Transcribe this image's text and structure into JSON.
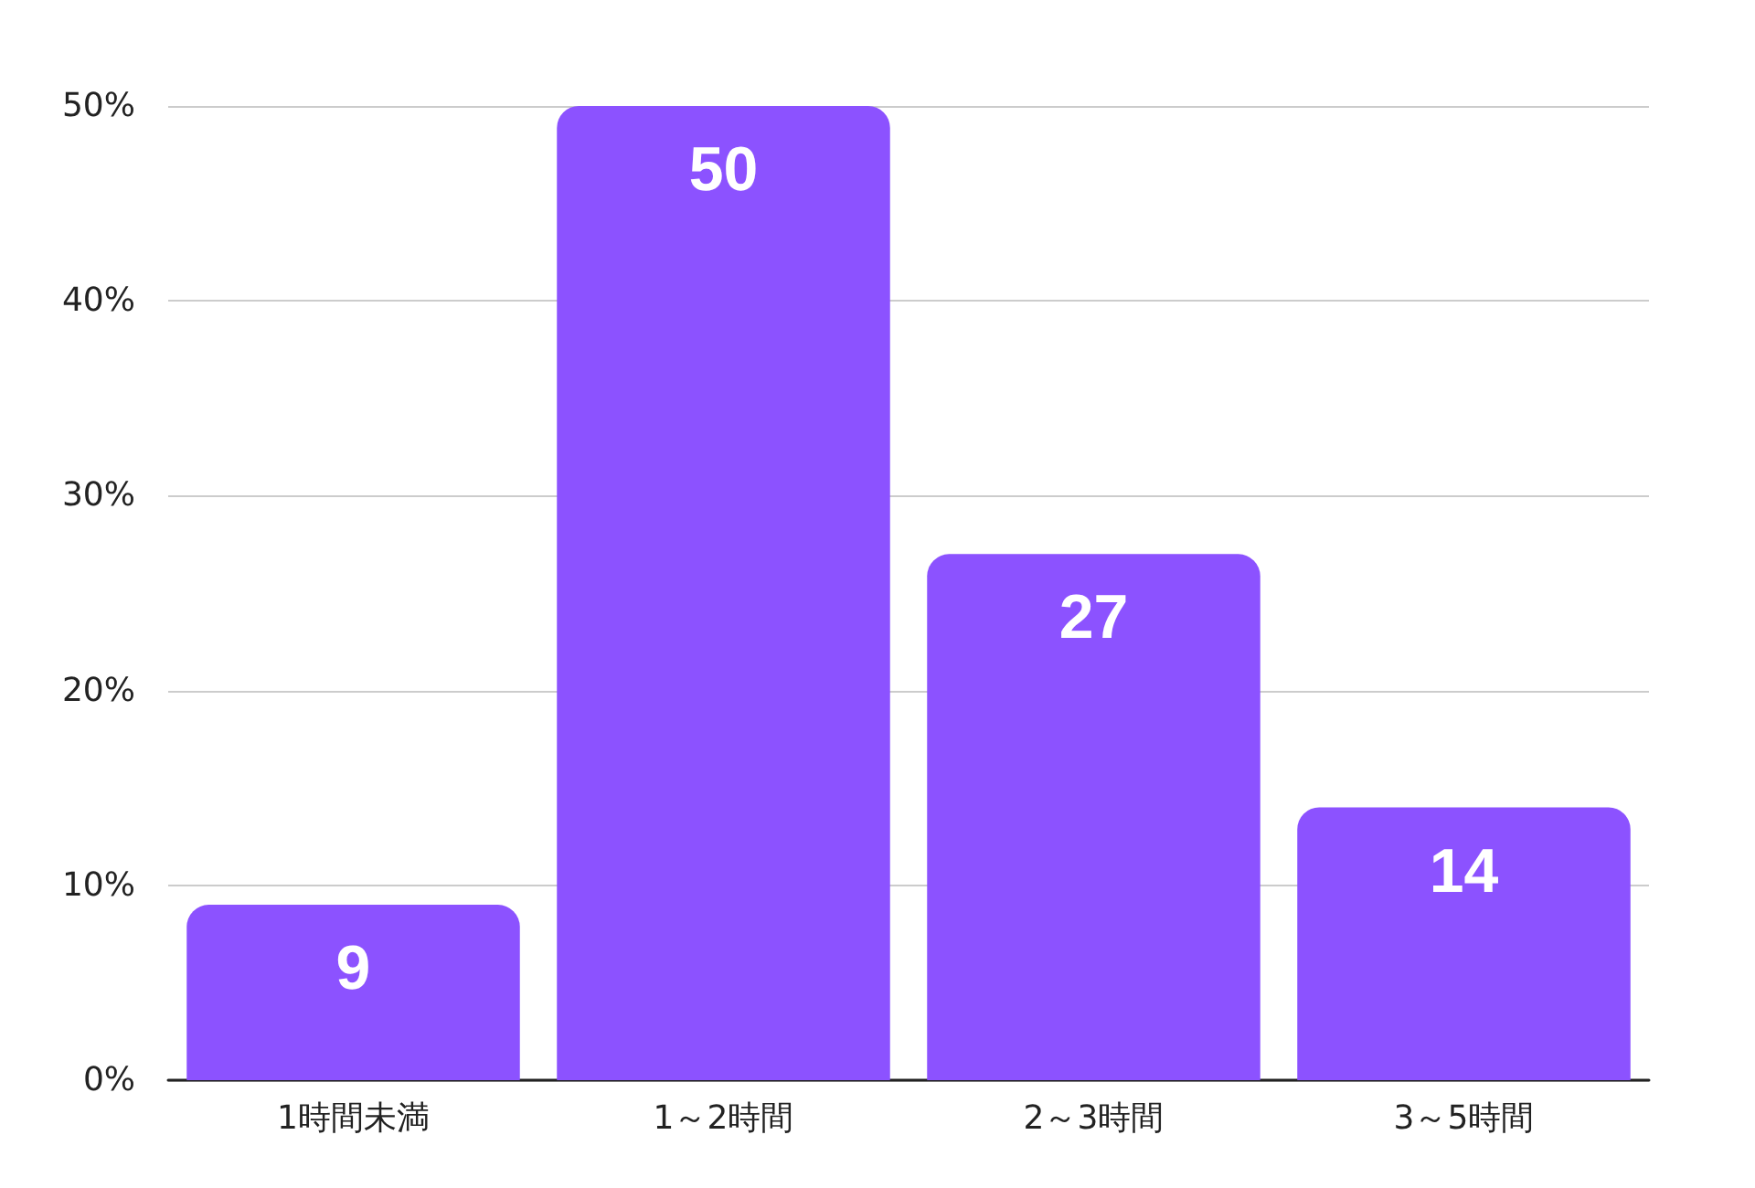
{
  "chart_data": {
    "type": "bar",
    "categories": [
      "1時間未満",
      "1～2時間",
      "2～3時間",
      "3～5時間"
    ],
    "values": [
      9,
      50,
      27,
      14
    ],
    "color": "#8c52ff",
    "ylim": [
      0,
      50
    ],
    "yticks": [
      {
        "value": 0,
        "label": "0%"
      },
      {
        "value": 10,
        "label": "10%"
      },
      {
        "value": 20,
        "label": "20%"
      },
      {
        "value": 30,
        "label": "30%"
      },
      {
        "value": 40,
        "label": "40%"
      },
      {
        "value": 50,
        "label": "50%"
      }
    ],
    "grid": "y",
    "data_labels": true
  }
}
